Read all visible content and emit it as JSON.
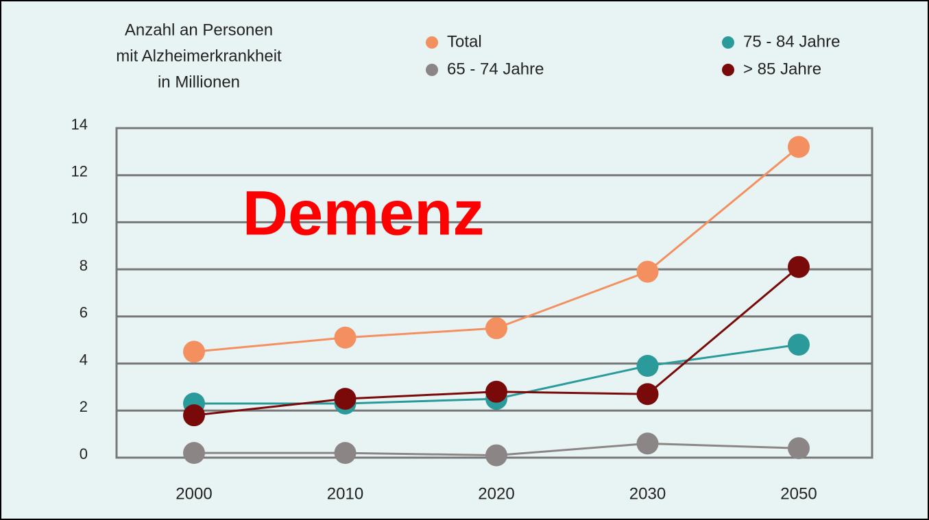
{
  "chart_data": {
    "type": "line",
    "title": [
      "Anzahl an Personen",
      "mit Alzheimerkrankheit",
      "in Millionen"
    ],
    "annotation": "Demenz",
    "categories": [
      "2000",
      "2010",
      "2020",
      "2030",
      "2050"
    ],
    "series": [
      {
        "name": "Total",
        "color": "#f4905f",
        "values": [
          4.5,
          5.1,
          5.5,
          7.9,
          13.2
        ]
      },
      {
        "name": "65 - 74 Jahre",
        "color": "#8c8585",
        "values": [
          0.2,
          0.2,
          0.1,
          0.6,
          0.4
        ]
      },
      {
        "name": "75 - 84 Jahre",
        "color": "#2a9a9a",
        "values": [
          2.3,
          2.3,
          2.5,
          3.9,
          4.8
        ]
      },
      {
        "name": "> 85 Jahre",
        "color": "#7a0a0a",
        "values": [
          1.8,
          2.5,
          2.8,
          2.7,
          8.1
        ]
      }
    ],
    "ylim": [
      0,
      14
    ],
    "yticks": [
      0,
      2,
      4,
      6,
      8,
      10,
      12,
      14
    ],
    "grid": true
  }
}
